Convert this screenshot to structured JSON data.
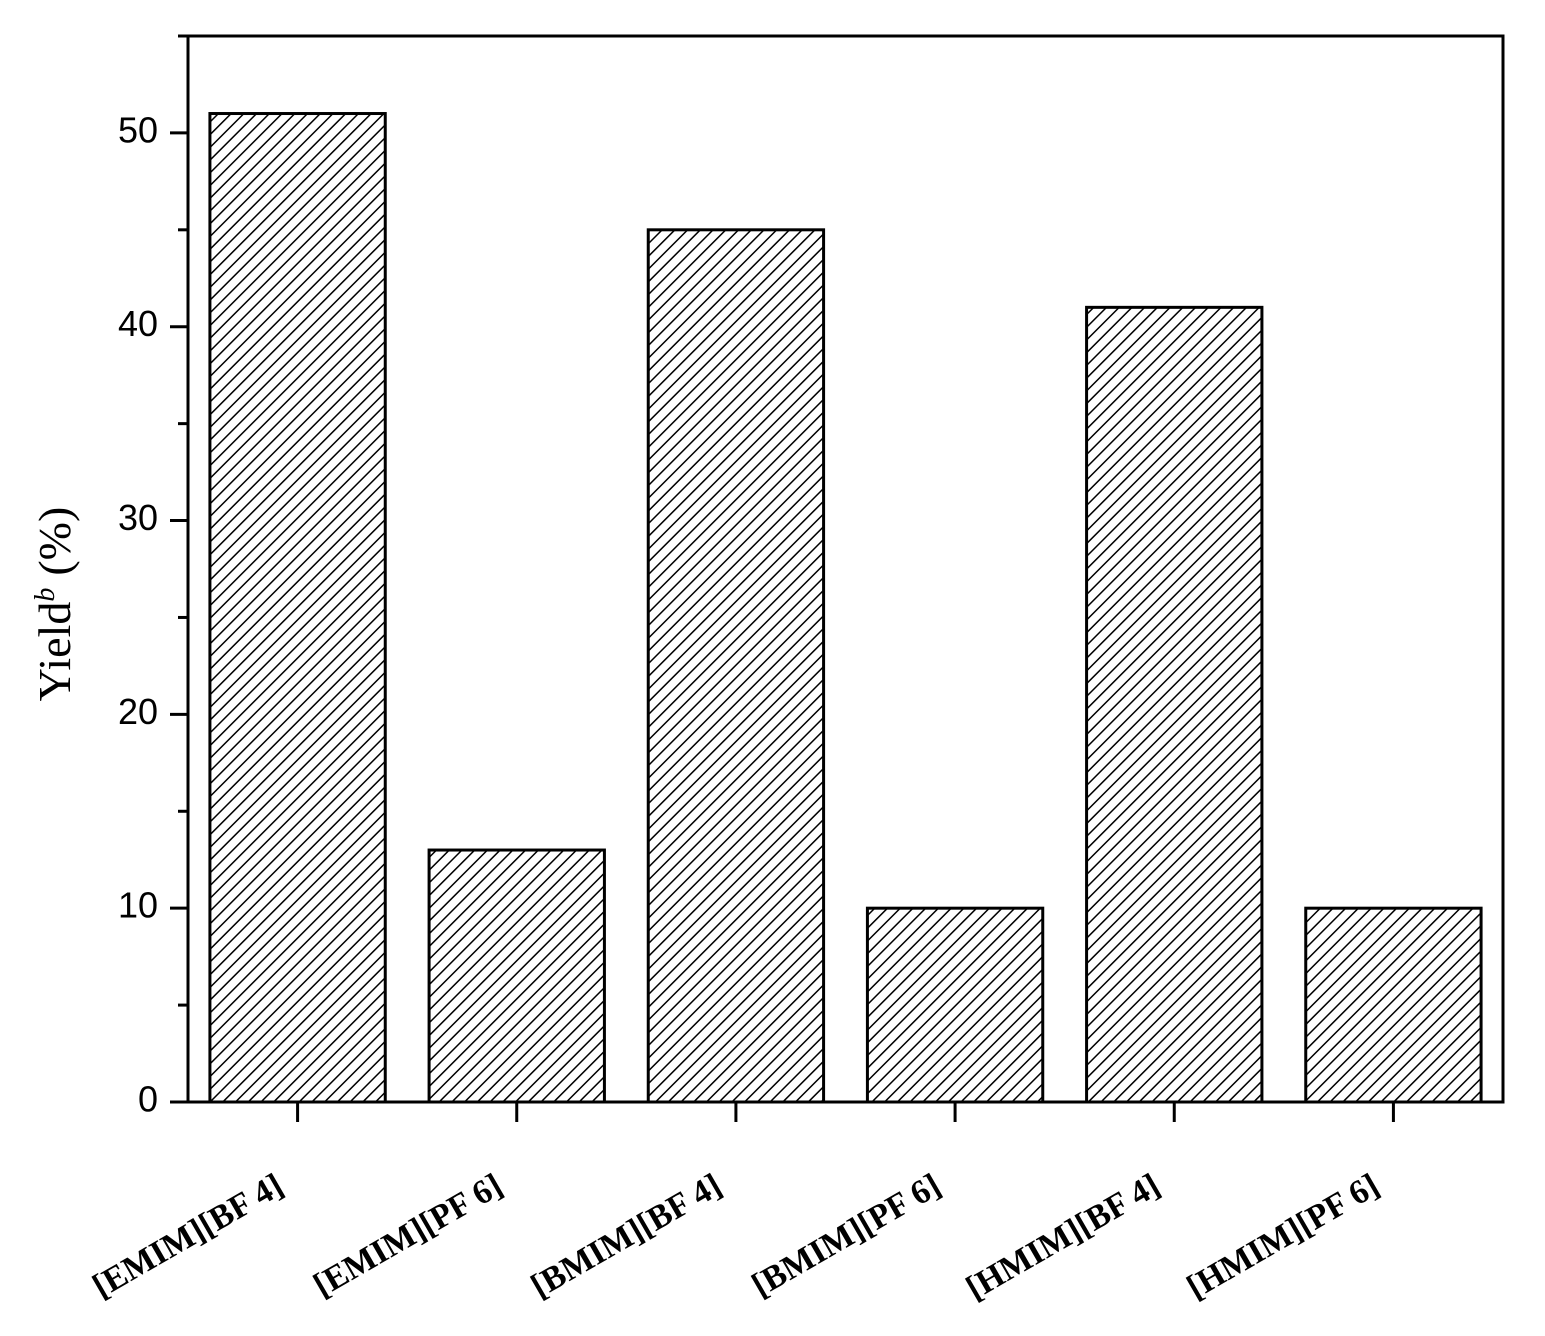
{
  "chart_data": {
    "type": "bar",
    "ylabel": "Yield",
    "ylabel_superscript": "b",
    "ylabel_unit": "(%)",
    "categories": [
      "[EMIM][BF 4]",
      "[EMIM][PF 6]",
      "[BMIM][BF 4]",
      "[BMIM][PF 6]",
      "[HMIM][BF 4]",
      "[HMIM][PF 6]"
    ],
    "values": [
      51,
      13,
      45,
      10,
      41,
      10
    ],
    "color": "#000000",
    "hatch": true,
    "ylim": [
      0,
      55
    ],
    "yticks": [
      0,
      10,
      20,
      30,
      40,
      50
    ],
    "minor_yticks": [
      5,
      15,
      25,
      35,
      45,
      55
    ],
    "grid": false
  }
}
